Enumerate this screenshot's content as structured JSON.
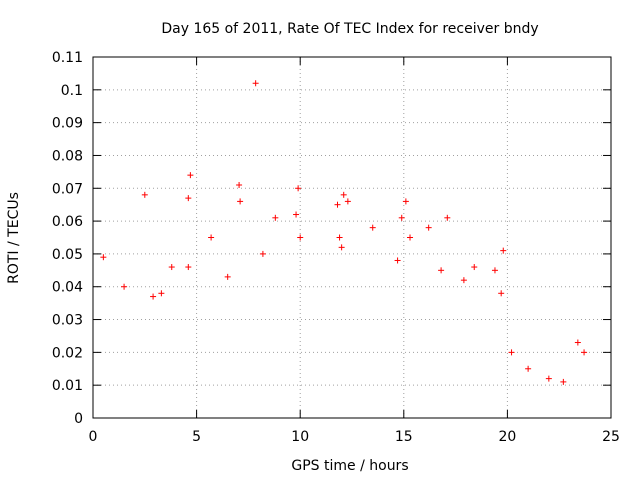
{
  "chart_data": {
    "type": "scatter",
    "title": "Day 165 of 2011, Rate Of TEC Index for receiver bndy",
    "xlabel": "GPS time / hours",
    "ylabel": "ROTI / TECUs",
    "xlim": [
      0,
      25
    ],
    "ylim": [
      0,
      0.11
    ],
    "x_ticks": [
      "0",
      "5",
      "10",
      "15",
      "20",
      "25"
    ],
    "y_ticks": [
      "0",
      "0.01",
      "0.02",
      "0.03",
      "0.04",
      "0.05",
      "0.06",
      "0.07",
      "0.08",
      "0.09",
      "0.1",
      "0.11"
    ],
    "grid": true,
    "marker": "plus",
    "series": [
      {
        "color": "#ff0000",
        "x": [
          7.85,
          4.7,
          4.6,
          7.05,
          7.1,
          9.9,
          2.5,
          12.1,
          12.3,
          15.1,
          14.9,
          11.8,
          8.8,
          9.8,
          17.1,
          5.7,
          13.5,
          16.2,
          18.4,
          19.8,
          4.6,
          10.0,
          11.9,
          8.2,
          6.5,
          2.9,
          0.5,
          1.5,
          3.3,
          3.8,
          12.0,
          14.7,
          15.3,
          16.8,
          17.9,
          19.4,
          19.7,
          20.2,
          21.0,
          22.0,
          22.7,
          23.4,
          23.7
        ],
        "y": [
          0.102,
          0.074,
          0.067,
          0.071,
          0.066,
          0.07,
          0.068,
          0.068,
          0.066,
          0.066,
          0.061,
          0.065,
          0.061,
          0.062,
          0.061,
          0.055,
          0.058,
          0.058,
          0.046,
          0.051,
          0.046,
          0.055,
          0.055,
          0.05,
          0.043,
          0.037,
          0.049,
          0.04,
          0.038,
          0.046,
          0.052,
          0.048,
          0.055,
          0.045,
          0.042,
          0.045,
          0.038,
          0.02,
          0.015,
          0.012,
          0.011,
          0.023,
          0.02
        ]
      }
    ]
  }
}
